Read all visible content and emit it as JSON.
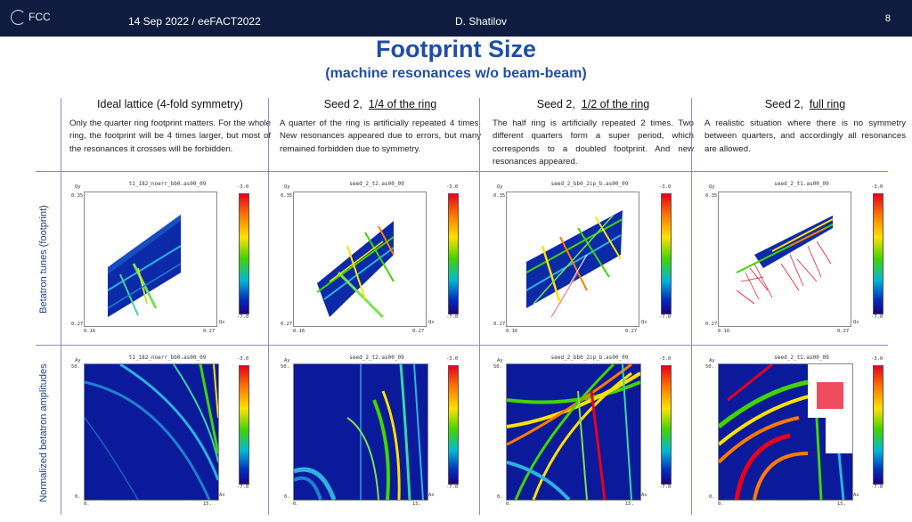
{
  "header": {
    "logo": "FCC",
    "date_event": "14 Sep 2022  /  eeFACT2022",
    "author": "D. Shatilov",
    "page_number": "8"
  },
  "title": "Footprint Size",
  "subtitle": "(machine resonances w/o beam-beam)",
  "row_labels": {
    "top": "Betatron tunes (footprint)",
    "bottom": "Normalized betatron amplitudes"
  },
  "columns": [
    {
      "head_plain": "Ideal lattice (4-fold symmetry)",
      "head_underlined": "",
      "description": "Only the quarter ring footprint matters. For the whole ring, the footprint will be 4 times larger, but most of the resonances it crosses will be forbidden.",
      "footprint_title": "t1_182_noerr_bb0.as00_09",
      "amplitude_title": "t1_182_noerr_bb0.as00_09"
    },
    {
      "head_plain": "Seed 2,",
      "head_underlined": "1/4 of the ring",
      "description": "A quarter of the ring is artificially repeated 4 times. New resonances appeared due to errors, but many remained forbidden due to symmetry.",
      "footprint_title": "seed_2_t2.as00_09",
      "amplitude_title": "seed_2_t2.as00_09"
    },
    {
      "head_plain": "Seed 2,",
      "head_underlined": "1/2 of the ring",
      "description": "The half ring is artificially repeated 2 times. Two different quarters form a super period, which corresponds to a doubled footprint. And new resonances  appeared.",
      "footprint_title": "seed_2_bb0_2ip_b.as00_09",
      "amplitude_title": "seed_2_bb0_2ip_b.as00_09"
    },
    {
      "head_plain": "Seed 2,",
      "head_underlined": "full ring",
      "description": "A realistic situation where there is no symmetry between quarters, and accordingly all resonances are allowed.",
      "footprint_title": "seed_2_t1.as00_09",
      "amplitude_title": "seed_2_t1.as00_09"
    }
  ],
  "footprint_axes": {
    "y_label": "Qy",
    "x_label": "Qx",
    "y_top": "0.35",
    "y_bottom": "0.27",
    "x_left": "0.16",
    "x_right": "0.27",
    "cbar_top": "-3.0",
    "cbar_bottom": "-7.0"
  },
  "amplitude_axes": {
    "y_label": "Ay",
    "x_label": "Ax",
    "y_top": "50.",
    "y_bottom": "0.",
    "x_left": "0.",
    "x_right": "15.",
    "cbar_top": "-3.0",
    "cbar_bottom": "-7.0"
  },
  "colors": {
    "header_bg": "#0f1c3f",
    "title": "#1f4ea8",
    "grid_line": "#8a8ad0",
    "plot_bg_dark": "#0a1a9a"
  }
}
